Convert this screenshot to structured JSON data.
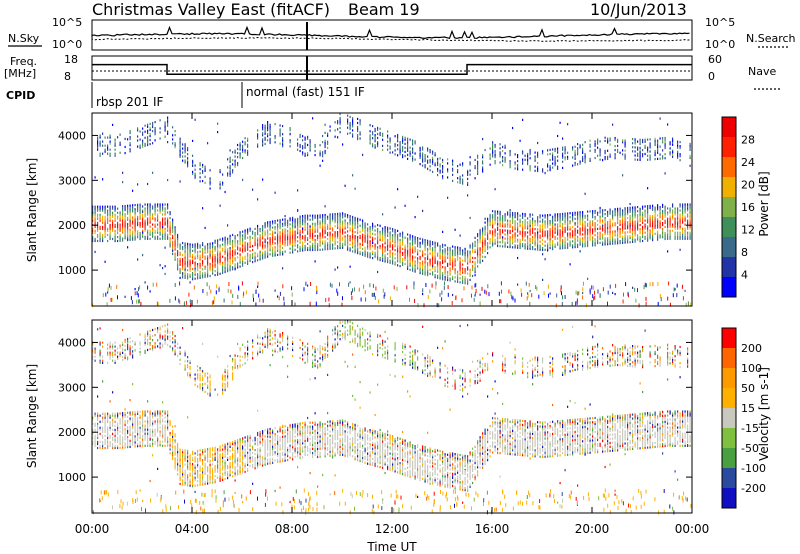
{
  "header": {
    "title": "Christmas Valley East (fitACF)",
    "beam": "Beam 19",
    "date": "10/Jun/2013"
  },
  "noise_panel": {
    "left_label": "N.Sky",
    "right_label": "N.Search",
    "left_ticks": [
      "10^5",
      "10^0"
    ],
    "right_ticks": [
      "10^5",
      "10^0"
    ]
  },
  "freq_panel": {
    "left_label_1": "Freq.",
    "left_label_2": "[MHz]",
    "right_label": "Nave",
    "left_ticks": [
      "18",
      "8"
    ],
    "right_ticks": [
      "60",
      "0"
    ]
  },
  "cpid": {
    "label": "CPID",
    "modes": [
      {
        "name": "rbsp 201 IF",
        "start": "00:00",
        "end": "06:00"
      },
      {
        "name": "normal (fast) 151 IF",
        "start": "06:00",
        "end": "24:00"
      }
    ]
  },
  "colors": {
    "power_scale": [
      "#0000ff",
      "#2233a8",
      "#3a6a8a",
      "#3f8f5a",
      "#7fb04a",
      "#f0b000",
      "#ff6a00",
      "#ff2000",
      "#ee0000"
    ],
    "velocity_scale": [
      "#ff0000",
      "#ff6600",
      "#ff9900",
      "#ffb000",
      "#c8c8be",
      "#80c040",
      "#4aa040",
      "#2a4aa0",
      "#1010c0"
    ],
    "ground_scatter": "#c8c8be"
  },
  "chart_data": [
    {
      "type": "heatmap",
      "name": "power",
      "ylabel": "Slant Range [km]",
      "yticks": [
        "1000",
        "2000",
        "3000",
        "4000"
      ],
      "ylim": [
        200,
        4500
      ],
      "colorbar_label": "Power [dB]",
      "colorbar_ticks": [
        "4",
        "8",
        "12",
        "16",
        "20",
        "24",
        "28"
      ],
      "scatter_bands": [
        {
          "x": [
            0,
            1,
            2,
            3,
            3.5,
            4,
            5,
            6,
            7,
            8,
            8.5,
            9,
            10,
            11,
            12,
            13,
            14,
            15,
            16,
            17,
            18,
            19,
            20,
            21,
            22,
            23,
            24
          ],
          "y": [
            2000,
            2000,
            2050,
            2050,
            1200,
            1150,
            1250,
            1450,
            1650,
            1750,
            1800,
            1800,
            1850,
            1650,
            1500,
            1300,
            1150,
            1050,
            1900,
            1850,
            1800,
            1850,
            1900,
            1950,
            2000,
            2050,
            2050
          ]
        },
        {
          "x": [
            0,
            1,
            2,
            3,
            4,
            5,
            6,
            7,
            8,
            9,
            10,
            11,
            12,
            13,
            14,
            15,
            16,
            17,
            18,
            19,
            20,
            21,
            22,
            23,
            24
          ],
          "y": [
            3750,
            3750,
            3950,
            4150,
            3300,
            2900,
            3700,
            4050,
            3900,
            3600,
            4300,
            4000,
            3800,
            3600,
            3250,
            3100,
            3600,
            3450,
            3400,
            3500,
            3650,
            3700,
            3650,
            3700,
            3600
          ]
        }
      ]
    },
    {
      "type": "heatmap",
      "name": "velocity",
      "ylabel": "Slant Range [km]",
      "yticks": [
        "1000",
        "2000",
        "3000",
        "4000"
      ],
      "ylim": [
        200,
        4500
      ],
      "colorbar_label": "Velocity [m s-1]",
      "colorbar_ticks": [
        "200",
        "100",
        "50",
        "15",
        "-15",
        "-50",
        "-100",
        "-200"
      ]
    }
  ],
  "xaxis": {
    "label": "Time UT",
    "ticks": [
      "00:00",
      "04:00",
      "08:00",
      "12:00",
      "16:00",
      "20:00",
      "00:00"
    ],
    "range_hours": [
      0,
      24
    ]
  }
}
